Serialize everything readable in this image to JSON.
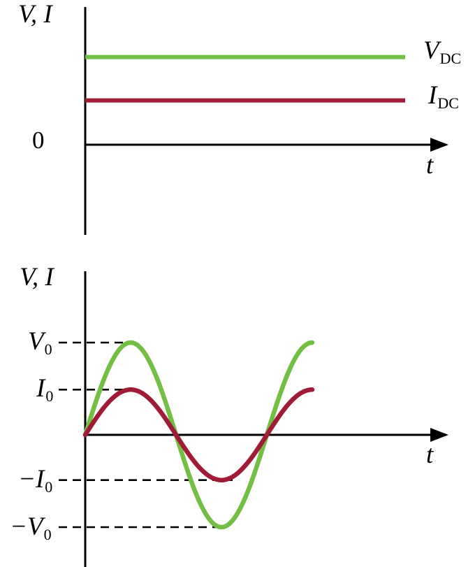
{
  "figure": {
    "background": "#ffffff"
  },
  "colors": {
    "axis": "#000000",
    "text": "#000000",
    "voltage": "#72bf44",
    "current": "#a01b35"
  },
  "chart_data": [
    {
      "id": "dc",
      "type": "line",
      "ylabel": "V, I",
      "xlabel": "t",
      "origin_label": "0",
      "ylim": [
        -0.65,
        1.1
      ],
      "units": "normalized to V0",
      "series": [
        {
          "name": "V_DC",
          "symbol": "V",
          "subscript": "DC",
          "shape": "constant",
          "value": 0.95,
          "color_key": "voltage"
        },
        {
          "name": "I_DC",
          "symbol": "I",
          "subscript": "DC",
          "shape": "constant",
          "value": 0.48,
          "color_key": "current"
        }
      ]
    },
    {
      "id": "ac",
      "type": "line",
      "ylabel": "V, I",
      "xlabel": "t",
      "ylim": [
        -1.45,
        1.2
      ],
      "units": "normalized to V0",
      "series": [
        {
          "name": "V",
          "symbol": "V",
          "subscript": "0",
          "shape": "sine",
          "amplitude": 1.0,
          "periods_shown": 1.25,
          "phase": 0,
          "color_key": "voltage"
        },
        {
          "name": "I",
          "symbol": "I",
          "subscript": "0",
          "shape": "sine",
          "amplitude": 0.49,
          "periods_shown": 1.25,
          "phase": 0,
          "color_key": "current"
        }
      ],
      "y_labels": [
        {
          "main": "V",
          "sub": "0",
          "value": 1.0
        },
        {
          "main": "I",
          "sub": "0",
          "value": 0.49
        },
        {
          "main": "−I",
          "sub": "0",
          "value": -0.49
        },
        {
          "main": "−V",
          "sub": "0",
          "value": -1.0
        }
      ]
    }
  ]
}
